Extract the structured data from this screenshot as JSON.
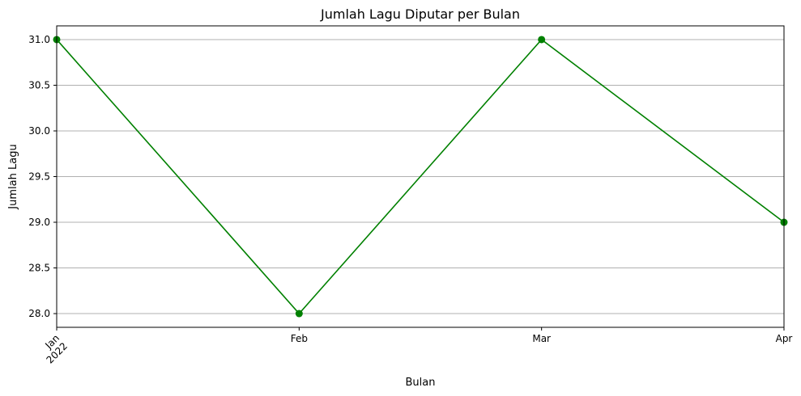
{
  "chart_data": {
    "type": "line",
    "title": "Jumlah Lagu Diputar per Bulan",
    "xlabel": "Bulan",
    "ylabel": "Jumlah Lagu",
    "categories": [
      "Jan",
      "Feb",
      "Mar",
      "Apr"
    ],
    "year_label": "2022",
    "series": [
      {
        "values": [
          31,
          28,
          31,
          29
        ],
        "color": "#008000",
        "marker": "circle"
      }
    ],
    "ylim": [
      27.85,
      31.15
    ],
    "yticks": [
      "28.0",
      "28.5",
      "29.0",
      "29.5",
      "30.0",
      "30.5",
      "31.0"
    ],
    "ytick_values": [
      28.0,
      28.5,
      29.0,
      29.5,
      30.0,
      30.5,
      31.0
    ],
    "grid": "y",
    "legend": "none"
  }
}
